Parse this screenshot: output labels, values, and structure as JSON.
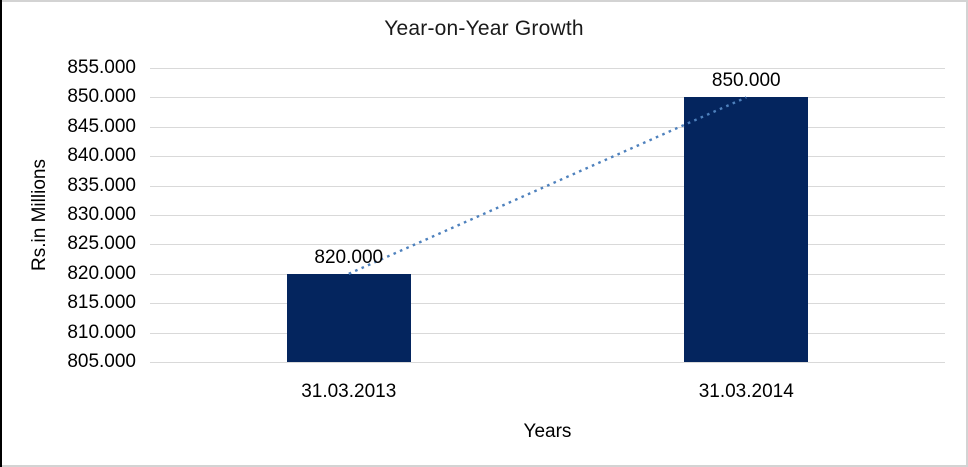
{
  "chart_data": {
    "type": "bar",
    "title": "Year-on-Year Growth",
    "xlabel": "Years",
    "ylabel": "Rs.in Millions",
    "categories": [
      "31.03.2013",
      "31.03.2014"
    ],
    "values": [
      820,
      850
    ],
    "data_labels": [
      "820.000",
      "850.000"
    ],
    "ylim": [
      805,
      855
    ],
    "ytick_step": 5,
    "ytick_labels": [
      "855.000",
      "850.000",
      "845.000",
      "840.000",
      "835.000",
      "830.000",
      "825.000",
      "820.000",
      "815.000",
      "810.000",
      "805.000"
    ],
    "grid": true,
    "legend": false,
    "bar_color": "#04255e",
    "gridline_color": "#d9d9d9",
    "trendline": {
      "style": "dotted",
      "color": "#4e81bd",
      "from_value": 820,
      "to_value": 850
    }
  }
}
